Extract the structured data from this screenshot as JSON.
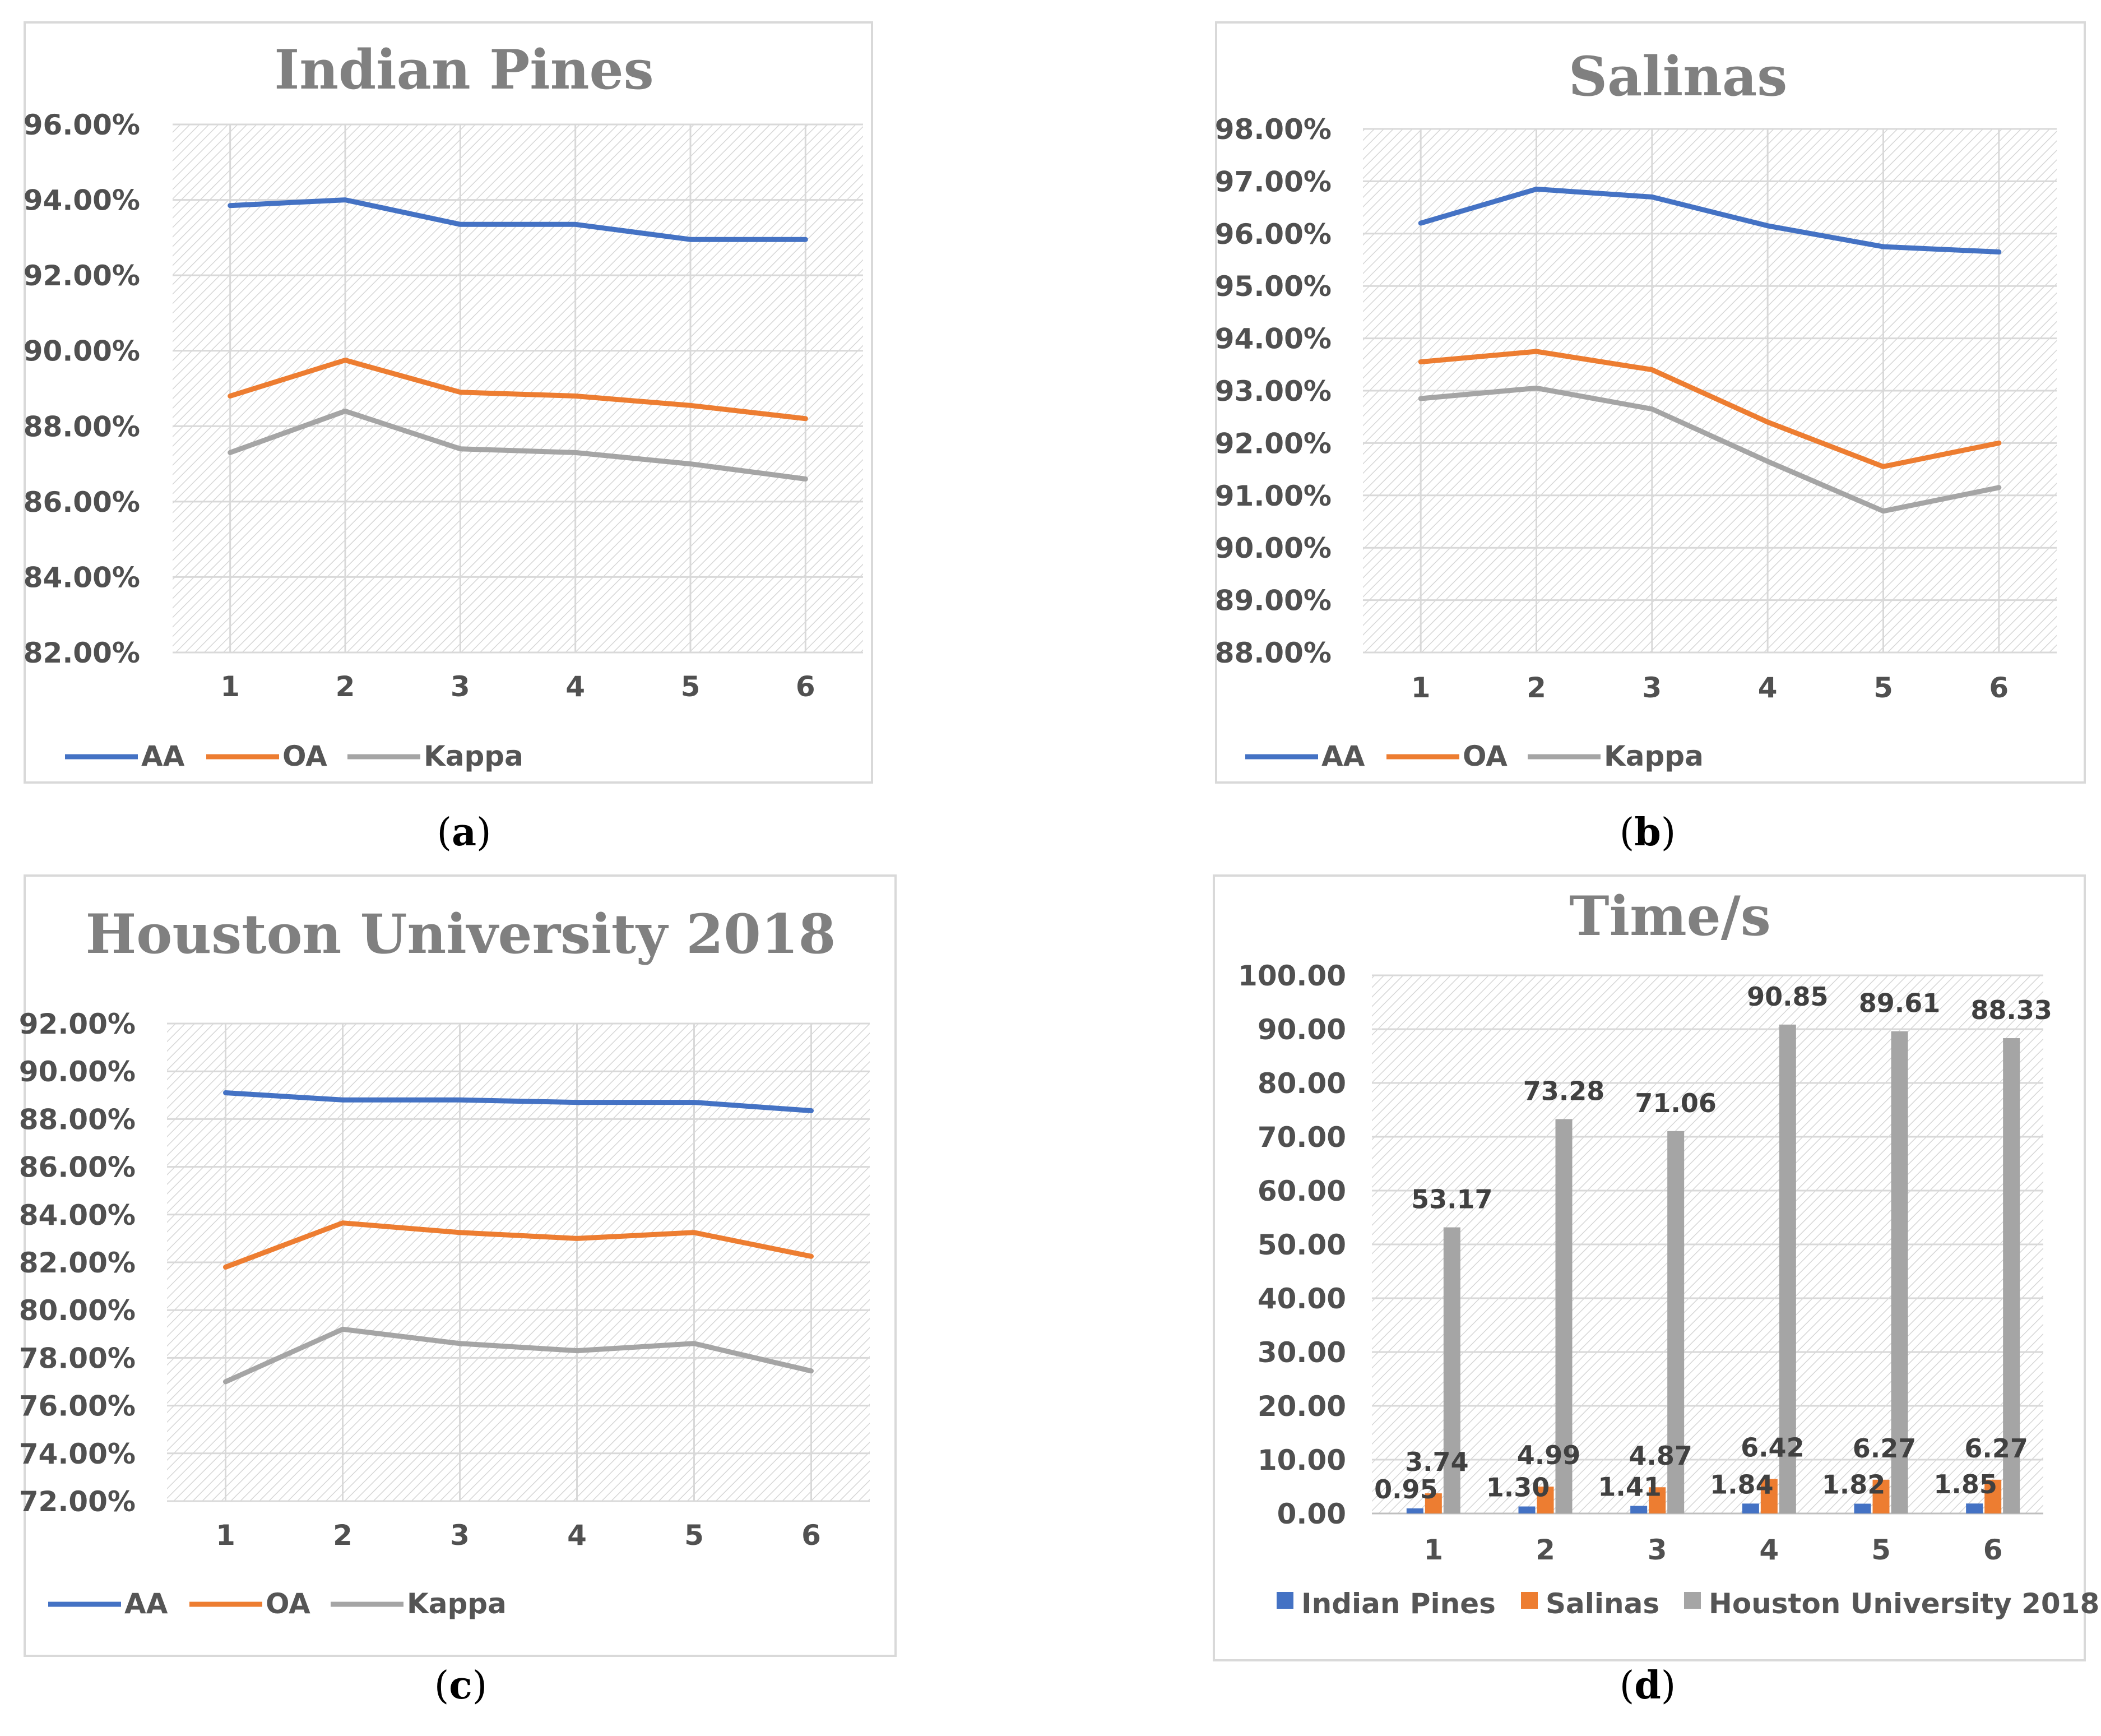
{
  "chart_data": [
    {
      "type": "line",
      "title": "Indian Pines",
      "caption": {
        "open": "(",
        "letter": "a",
        "close": ")"
      },
      "x": [
        1,
        2,
        3,
        4,
        5,
        6
      ],
      "ylim": [
        82,
        96
      ],
      "ytick_step": 2,
      "yticks": [
        "82.00%",
        "84.00%",
        "86.00%",
        "88.00%",
        "90.00%",
        "92.00%",
        "94.00%",
        "96.00%"
      ],
      "grid": true,
      "legend": "bottom-left",
      "series": [
        {
          "name": "AA",
          "color": "#4472C4",
          "values": [
            93.85,
            94.0,
            93.35,
            93.35,
            92.95,
            92.95
          ]
        },
        {
          "name": "OA",
          "color": "#ED7D31",
          "values": [
            88.8,
            89.75,
            88.9,
            88.8,
            88.55,
            88.2
          ]
        },
        {
          "name": "Kappa",
          "color": "#A5A5A5",
          "values": [
            87.3,
            88.4,
            87.4,
            87.3,
            87.0,
            86.6
          ]
        }
      ]
    },
    {
      "type": "line",
      "title": "Salinas",
      "caption": {
        "open": "(",
        "letter": "b",
        "close": ")"
      },
      "x": [
        1,
        2,
        3,
        4,
        5,
        6
      ],
      "ylim": [
        88,
        98
      ],
      "ytick_step": 1,
      "yticks": [
        "88.00%",
        "89.00%",
        "90.00%",
        "91.00%",
        "92.00%",
        "93.00%",
        "94.00%",
        "95.00%",
        "96.00%",
        "97.00%",
        "98.00%"
      ],
      "grid": true,
      "legend": "bottom-left",
      "series": [
        {
          "name": "AA",
          "color": "#4472C4",
          "values": [
            96.2,
            96.85,
            96.7,
            96.15,
            95.75,
            95.65
          ]
        },
        {
          "name": "OA",
          "color": "#ED7D31",
          "values": [
            93.55,
            93.75,
            93.4,
            92.4,
            91.55,
            92.0
          ]
        },
        {
          "name": "Kappa",
          "color": "#A5A5A5",
          "values": [
            92.85,
            93.05,
            92.65,
            91.65,
            90.7,
            91.15
          ]
        }
      ]
    },
    {
      "type": "line",
      "title": "Houston University 2018",
      "caption": {
        "open": "(",
        "letter": "c",
        "close": ")"
      },
      "x": [
        1,
        2,
        3,
        4,
        5,
        6
      ],
      "ylim": [
        72,
        92
      ],
      "ytick_step": 2,
      "yticks": [
        "72.00%",
        "74.00%",
        "76.00%",
        "78.00%",
        "80.00%",
        "82.00%",
        "84.00%",
        "86.00%",
        "88.00%",
        "90.00%",
        "92.00%"
      ],
      "grid": true,
      "legend": "bottom-left",
      "series": [
        {
          "name": "AA",
          "color": "#4472C4",
          "values": [
            89.1,
            88.8,
            88.8,
            88.7,
            88.7,
            88.35
          ]
        },
        {
          "name": "OA",
          "color": "#ED7D31",
          "values": [
            81.8,
            83.65,
            83.25,
            83.0,
            83.25,
            82.25
          ]
        },
        {
          "name": "Kappa",
          "color": "#A5A5A5",
          "values": [
            77.0,
            79.2,
            78.6,
            78.3,
            78.6,
            77.45
          ]
        }
      ]
    },
    {
      "type": "bar",
      "title": "Time/s",
      "caption": {
        "open": "(",
        "letter": "d",
        "close": ")"
      },
      "categories": [
        "1",
        "2",
        "3",
        "4",
        "5",
        "6"
      ],
      "ylim": [
        0,
        100
      ],
      "ytick_step": 10,
      "yticks": [
        "0.00",
        "10.00",
        "20.00",
        "30.00",
        "40.00",
        "50.00",
        "60.00",
        "70.00",
        "80.00",
        "90.00",
        "100.00"
      ],
      "grid": true,
      "legend": "bottom",
      "series": [
        {
          "name": "Indian Pines",
          "color": "#4472C4",
          "values": [
            0.95,
            1.3,
            1.41,
            1.84,
            1.82,
            1.85
          ],
          "labels": [
            "0.95",
            "1.30",
            "1.41",
            "1.84",
            "1.82",
            "1.85"
          ]
        },
        {
          "name": "Salinas",
          "color": "#ED7D31",
          "values": [
            3.74,
            4.99,
            4.87,
            6.42,
            6.27,
            6.27
          ],
          "labels": [
            "3.74",
            "4.99",
            "4.87",
            "6.42",
            "6.27",
            "6.27"
          ]
        },
        {
          "name": "Houston University 2018",
          "color": "#A5A5A5",
          "values": [
            53.17,
            73.28,
            71.06,
            90.85,
            89.61,
            88.33
          ],
          "labels": [
            "53.17",
            "73.28",
            "71.06",
            "90.85",
            "89.61",
            "88.33"
          ]
        }
      ]
    }
  ]
}
